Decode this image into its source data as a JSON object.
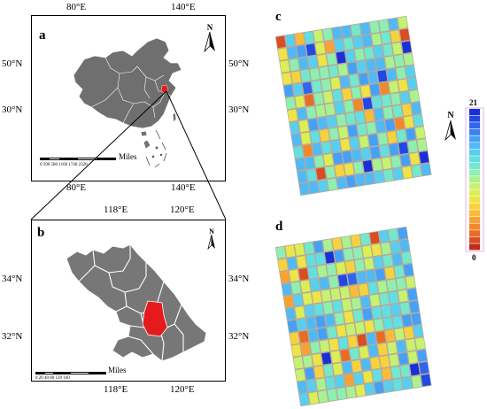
{
  "panels": {
    "a": {
      "letter": "a",
      "ticks_top": [
        "80°E",
        "140°E"
      ],
      "ticks_bottom": [
        "80°E",
        "140°E"
      ],
      "ticks_left": [
        "50°N",
        "30°N"
      ],
      "ticks_right": [
        "50°N",
        "30°N"
      ],
      "north": "N",
      "scale_numbers": "0 290 580    1160    1740    2320",
      "scale_unit": "Miles"
    },
    "b": {
      "letter": "b",
      "ticks_top": [
        "118°E",
        "120°E"
      ],
      "ticks_bottom": [
        "118°E",
        "120°E"
      ],
      "ticks_left": [
        "34°N",
        "32°N"
      ],
      "ticks_right": [
        "34°N",
        "32°N"
      ],
      "north": "N",
      "scale_numbers": "0  20  40     80     120    160",
      "scale_unit": "Miles"
    },
    "c": {
      "letter": "c"
    },
    "d": {
      "letter": "d"
    }
  },
  "legend": {
    "north": "N",
    "max_label": "21",
    "min_label": "0",
    "colors": [
      "#1a2fd6",
      "#2048e6",
      "#2e66ef",
      "#3a82f4",
      "#45a0f7",
      "#4fbaf6",
      "#58cff0",
      "#62dfe2",
      "#74e8cc",
      "#8eefb0",
      "#aaf290",
      "#c6f270",
      "#dcee55",
      "#eee447",
      "#f7d23f",
      "#f9bb39",
      "#f8a233",
      "#f3872c",
      "#e96c26",
      "#d94d20",
      "#bf2c1b"
    ]
  },
  "colors": {
    "country_fill": "#6f6f6f",
    "province_fill": "#777777",
    "highlight": "#e41a1c",
    "outline": "#ffffff"
  }
}
